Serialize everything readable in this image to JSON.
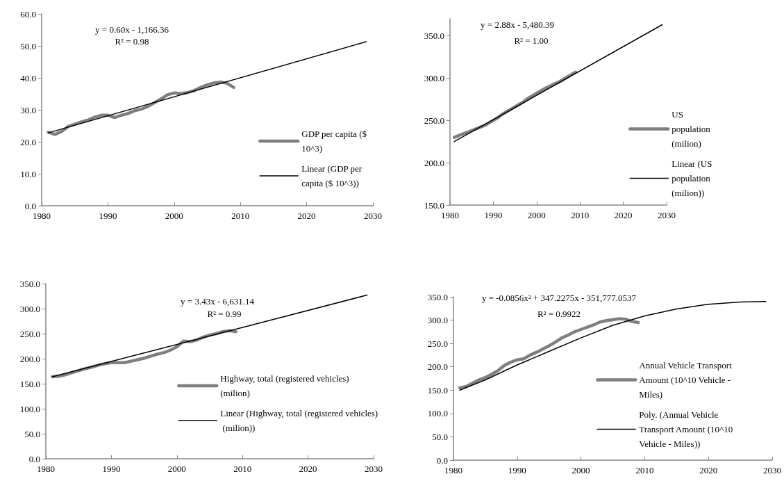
{
  "chart_data": [
    {
      "type": "line",
      "x": [
        1981,
        1982,
        1983,
        1984,
        1985,
        1986,
        1987,
        1988,
        1989,
        1990,
        1991,
        1992,
        1993,
        1994,
        1995,
        1996,
        1997,
        1998,
        1999,
        2000,
        2001,
        2002,
        2003,
        2004,
        2005,
        2006,
        2007,
        2008,
        2009
      ],
      "series": [
        {
          "name": "GDP per capita ($ 10^3)",
          "color": "#7f7f7f",
          "values": [
            23.0,
            22.3,
            23.2,
            24.8,
            25.5,
            26.2,
            26.8,
            27.7,
            28.3,
            28.3,
            27.6,
            28.3,
            28.8,
            29.7,
            30.2,
            31.0,
            32.2,
            33.4,
            34.7,
            35.3,
            35.1,
            35.4,
            36.0,
            37.0,
            37.8,
            38.4,
            38.7,
            38.3,
            37.0
          ]
        },
        {
          "name": "Linear (GDP per capita ($ 10^3))",
          "color": "#000000",
          "x": [
            1981,
            2029
          ],
          "values": [
            22.8,
            51.3
          ]
        }
      ],
      "xlim": [
        1980,
        2030
      ],
      "xticks": [
        1980,
        1990,
        2000,
        2010,
        2020,
        2030
      ],
      "ylim": [
        0,
        60
      ],
      "yticks": [
        {
          "value": 0,
          "label": "0.0"
        },
        {
          "value": 10,
          "label": "10.0"
        },
        {
          "value": 20,
          "label": "20.0"
        },
        {
          "value": 30,
          "label": "30.0"
        },
        {
          "value": 40,
          "label": "40.0"
        },
        {
          "value": 50,
          "label": "50.0"
        },
        {
          "value": 60,
          "label": "60.0"
        }
      ],
      "annotations": [
        "y = 0.60x - 1,166.36",
        "R² = 0.98"
      ],
      "legend": "right",
      "marker": "none",
      "grid": false
    },
    {
      "type": "line",
      "x": [
        1981,
        1982,
        1983,
        1984,
        1985,
        1986,
        1987,
        1988,
        1989,
        1990,
        1991,
        1992,
        1993,
        1994,
        1995,
        1996,
        1997,
        1998,
        1999,
        2000,
        2001,
        2002,
        2003,
        2004,
        2005,
        2006,
        2007,
        2008,
        2009
      ],
      "series": [
        {
          "name": "US population (milion)",
          "color": "#7f7f7f",
          "values": [
            230,
            232,
            234,
            236,
            238,
            240,
            242,
            244,
            247,
            250,
            253,
            257,
            260,
            263,
            266,
            269,
            272,
            276,
            279,
            282,
            285,
            288,
            290,
            293,
            295,
            298,
            301,
            304,
            307
          ]
        },
        {
          "name": "Linear (US population (milion))",
          "color": "#000000",
          "x": [
            1981,
            2029
          ],
          "values": [
            225,
            363
          ]
        }
      ],
      "xlim": [
        1980,
        2030
      ],
      "xticks": [
        1980,
        1990,
        2000,
        2010,
        2020,
        2030
      ],
      "ylim": [
        150,
        370
      ],
      "yticks": [
        {
          "value": 150,
          "label": "150.0"
        },
        {
          "value": 200,
          "label": "200.0"
        },
        {
          "value": 250,
          "label": "250.0"
        },
        {
          "value": 300,
          "label": "300.0"
        },
        {
          "value": 350,
          "label": "350.0"
        }
      ],
      "annotations": [
        "y = 2.88x - 5,480.39",
        "R² = 1.00"
      ],
      "legend": "right",
      "marker": "none",
      "grid": false
    },
    {
      "type": "line",
      "x": [
        1981,
        1982,
        1983,
        1984,
        1985,
        1986,
        1987,
        1988,
        1989,
        1990,
        1991,
        1992,
        1993,
        1994,
        1995,
        1996,
        1997,
        1998,
        1999,
        2000,
        2001,
        2002,
        2003,
        2004,
        2005,
        2006,
        2007,
        2008,
        2009
      ],
      "series": [
        {
          "name": "Highway, total (registered vehicles) (milion)",
          "color": "#7f7f7f",
          "values": [
            164,
            165,
            168,
            172,
            176,
            180,
            183,
            187,
            190,
            192,
            192,
            192,
            195,
            198,
            201,
            205,
            209,
            212,
            217,
            224,
            235,
            234,
            237,
            243,
            247,
            250,
            254,
            256,
            254
          ]
        },
        {
          "name": "Linear (Highway, total (registered vehicles) (milion))",
          "color": "#000000",
          "x": [
            1981,
            2029
          ],
          "values": [
            164,
            327
          ]
        }
      ],
      "xlim": [
        1980,
        2030
      ],
      "xticks": [
        1980,
        1990,
        2000,
        2010,
        2020,
        2030
      ],
      "ylim": [
        0,
        350
      ],
      "yticks": [
        {
          "value": 0,
          "label": "0.0"
        },
        {
          "value": 50,
          "label": "50.0"
        },
        {
          "value": 100,
          "label": "100.0"
        },
        {
          "value": 150,
          "label": "150.0"
        },
        {
          "value": 200,
          "label": "200.0"
        },
        {
          "value": 250,
          "label": "250.0"
        },
        {
          "value": 300,
          "label": "300.0"
        },
        {
          "value": 350,
          "label": "350.0"
        }
      ],
      "annotations": [
        "y = 3.43x - 6,631.14",
        "R² = 0.99"
      ],
      "legend": "right",
      "marker": "none",
      "grid": false
    },
    {
      "type": "line",
      "x": [
        1981,
        1982,
        1983,
        1984,
        1985,
        1986,
        1987,
        1988,
        1989,
        1990,
        1991,
        1992,
        1993,
        1994,
        1995,
        1996,
        1997,
        1998,
        1999,
        2000,
        2001,
        2002,
        2003,
        2004,
        2005,
        2006,
        2007,
        2008,
        2009
      ],
      "series": [
        {
          "name": "Annual Vehicle Transport Amount (10^10 Vehicle - Miles)",
          "color": "#7f7f7f",
          "values": [
            155,
            158,
            165,
            172,
            177,
            184,
            192,
            203,
            210,
            215,
            217,
            225,
            231,
            238,
            245,
            253,
            262,
            268,
            275,
            280,
            285,
            290,
            296,
            299,
            301,
            303,
            302,
            297,
            295
          ]
        },
        {
          "name": "Poly. (Annual Vehicle Transport Amount (10^10 Vehicle - Miles))",
          "color": "#000000",
          "x": [
            1981,
            1985,
            1990,
            1995,
            2000,
            2005,
            2010,
            2015,
            2020,
            2025,
            2029
          ],
          "values": [
            150,
            172,
            204,
            233,
            262,
            289,
            309,
            324,
            334,
            339,
            340
          ]
        }
      ],
      "xlim": [
        1980,
        2030
      ],
      "xticks": [
        1980,
        1990,
        2000,
        2010,
        2020,
        2030
      ],
      "ylim": [
        0,
        350
      ],
      "yticks": [
        {
          "value": 0,
          "label": "0.0"
        },
        {
          "value": 50,
          "label": "50.0"
        },
        {
          "value": 100,
          "label": "100.0"
        },
        {
          "value": 150,
          "label": "150.0"
        },
        {
          "value": 200,
          "label": "200.0"
        },
        {
          "value": 250,
          "label": "250.0"
        },
        {
          "value": 300,
          "label": "300.0"
        },
        {
          "value": 350,
          "label": "350.0"
        }
      ],
      "annotations": [
        "y = -0.0856x² + 347.2275x - 351,777.0537",
        "R² = 0.9922"
      ],
      "legend": "right",
      "marker": "none",
      "grid": false
    }
  ]
}
